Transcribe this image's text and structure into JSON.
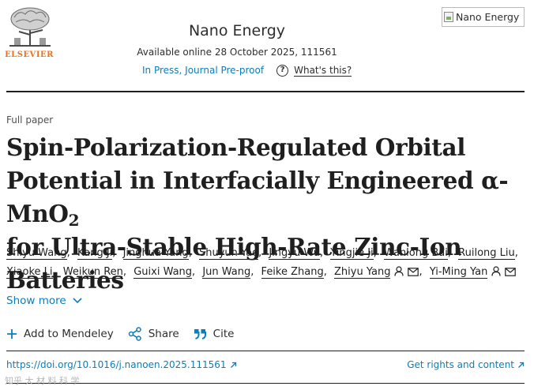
{
  "publisher": {
    "name": "ELSEVIER",
    "logo_icon": "elsevier-tree-icon"
  },
  "journal": {
    "name": "Nano Energy",
    "availability": "Available online 28 October 2025, 111561",
    "status": "In Press, Journal Pre-proof",
    "help_label": "What's this?",
    "cover_alt": "Nano Energy"
  },
  "article": {
    "type": "Full paper",
    "title_line1": "Spin-Polarization-Regulated Orbital",
    "title_line2_pre": "Potential in Interfacially Engineered α-MnO",
    "title_line2_sub": "2",
    "title_line3": "for Ultra-Stable High-Rate Zinc-Ion Batteries"
  },
  "authors": [
    {
      "name": "Shiyu Wang"
    },
    {
      "name": "Kang Ji"
    },
    {
      "name": "Jinghua Yang"
    },
    {
      "name": "Shuyun Yao"
    },
    {
      "name": "Jingyu Wu"
    },
    {
      "name": "Yingjie Ji"
    },
    {
      "name": "Wanlong Bai"
    },
    {
      "name": "Ruilong Liu"
    },
    {
      "name": "Xiaoke Li"
    },
    {
      "name": "Weikun Ren"
    },
    {
      "name": "Guixi Wang"
    },
    {
      "name": "Jun Wang"
    },
    {
      "name": "Feike Zhang"
    },
    {
      "name": "Zhiyu Yang",
      "corresponding": true
    },
    {
      "name": "Yi-Ming Yan",
      "corresponding": true
    }
  ],
  "show_more_label": "Show more",
  "actions": {
    "mendeley": "Add to Mendeley",
    "share": "Share",
    "cite": "Cite"
  },
  "links": {
    "doi": "https://doi.org/10.1016/j.nanoen.2025.111561",
    "rights": "Get rights and content"
  },
  "watermark": "知乎 大 材 料 科 学",
  "colors": {
    "link": "#0c7dbb",
    "elsevier_orange": "#e9711c",
    "text": "#1f1f1f"
  }
}
